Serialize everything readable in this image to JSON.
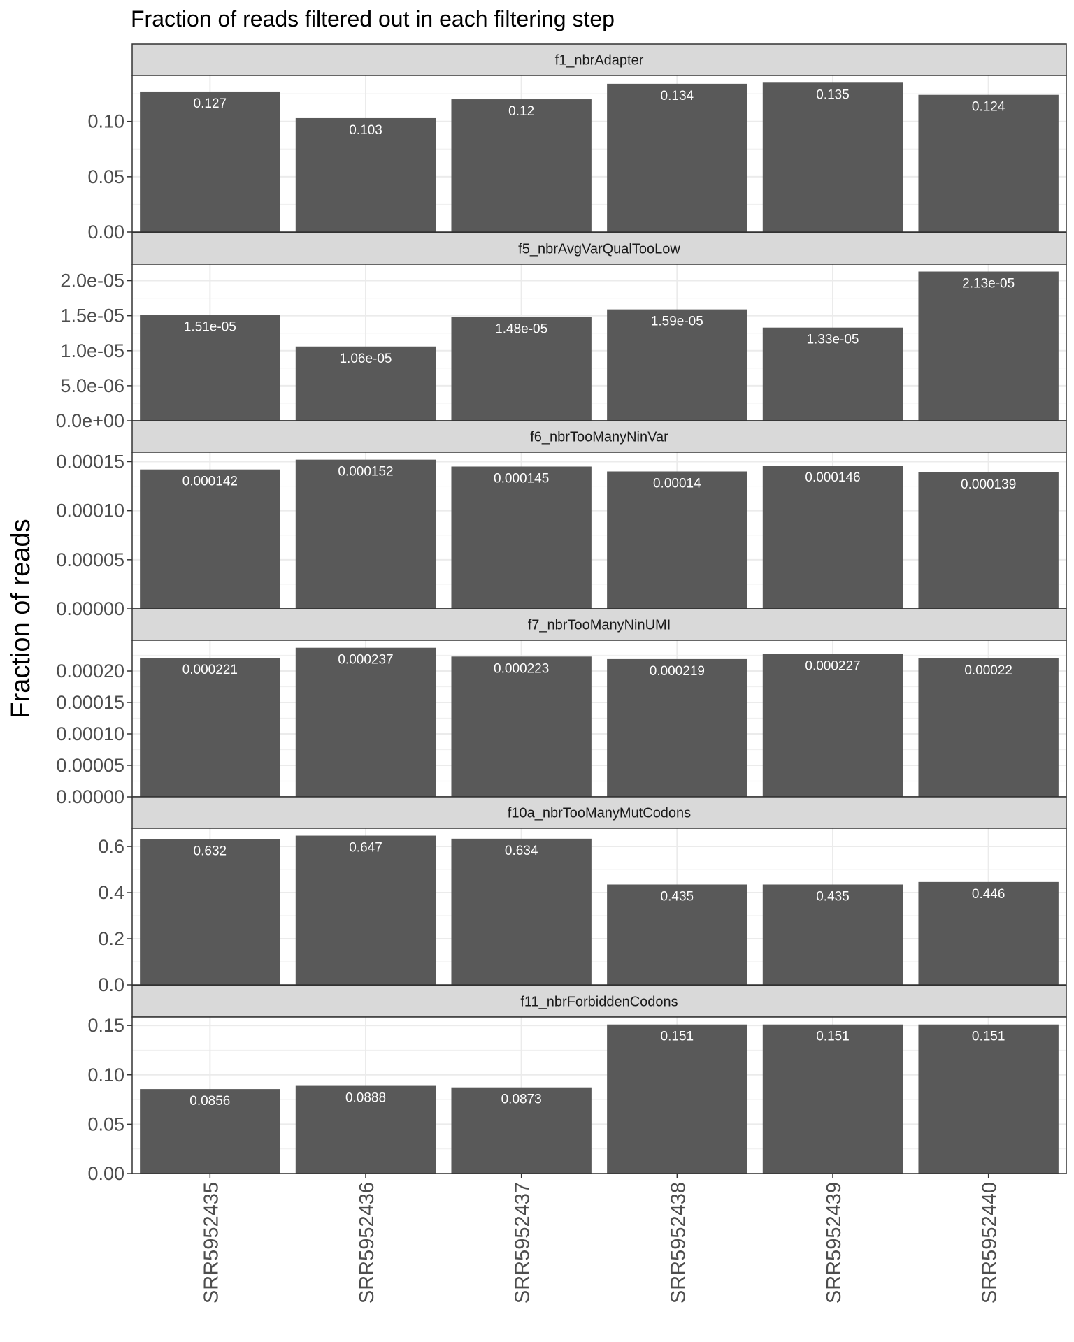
{
  "chart_data": {
    "type": "bar",
    "title": "Fraction of reads filtered out in each filtering step",
    "ylabel": "Fraction of reads",
    "xlabel": "",
    "bar_color": "#595959",
    "strip_fill": "#d9d9d9",
    "grid": true,
    "categories": [
      "SRR5952435",
      "SRR5952436",
      "SRR5952437",
      "SRR5952438",
      "SRR5952439",
      "SRR5952440"
    ],
    "panels": [
      {
        "name": "f1_nbrAdapter",
        "values": [
          0.127,
          0.103,
          0.12,
          0.134,
          0.135,
          0.124
        ],
        "labels": [
          "0.127",
          "0.103",
          "0.12",
          "0.134",
          "0.135",
          "0.124"
        ],
        "ylim": [
          0,
          0.1415
        ],
        "yticks": [
          0,
          0.05,
          0.1
        ],
        "yticklabels": [
          "0.00",
          "0.05",
          "0.10"
        ]
      },
      {
        "name": "f5_nbrAvgVarQualTooLow",
        "values": [
          1.51e-05,
          1.06e-05,
          1.48e-05,
          1.59e-05,
          1.33e-05,
          2.13e-05
        ],
        "labels": [
          "1.51e-05",
          "1.06e-05",
          "1.48e-05",
          "1.59e-05",
          "1.33e-05",
          "2.13e-05"
        ],
        "ylim": [
          0,
          2.235e-05
        ],
        "yticks": [
          0,
          5e-06,
          1e-05,
          1.5e-05,
          2e-05
        ],
        "yticklabels": [
          "0.0e+00",
          "5.0e-06",
          "1.0e-05",
          "1.5e-05",
          "2.0e-05"
        ]
      },
      {
        "name": "f6_nbrTooManyNinVar",
        "values": [
          0.000142,
          0.000152,
          0.000145,
          0.00014,
          0.000146,
          0.000139
        ],
        "labels": [
          "0.000142",
          "0.000152",
          "0.000145",
          "0.00014",
          "0.000146",
          "0.000139"
        ],
        "ylim": [
          0,
          0.0001596
        ],
        "yticks": [
          0,
          5e-05,
          0.0001,
          0.00015
        ],
        "yticklabels": [
          "0.00000",
          "0.00005",
          "0.00010",
          "0.00015"
        ]
      },
      {
        "name": "f7_nbrTooManyNinUMI",
        "values": [
          0.000221,
          0.000237,
          0.000223,
          0.000219,
          0.000227,
          0.00022
        ],
        "labels": [
          "0.000221",
          "0.000237",
          "0.000223",
          "0.000219",
          "0.000227",
          "0.00022"
        ],
        "ylim": [
          0,
          0.0002489
        ],
        "yticks": [
          0,
          5e-05,
          0.0001,
          0.00015,
          0.0002
        ],
        "yticklabels": [
          "0.00000",
          "0.00005",
          "0.00010",
          "0.00015",
          "0.00020"
        ]
      },
      {
        "name": "f10a_nbrTooManyMutCodons",
        "values": [
          0.632,
          0.647,
          0.634,
          0.435,
          0.435,
          0.446
        ],
        "labels": [
          "0.632",
          "0.647",
          "0.634",
          "0.435",
          "0.435",
          "0.446"
        ],
        "ylim": [
          0,
          0.679
        ],
        "yticks": [
          0,
          0.2,
          0.4,
          0.6
        ],
        "yticklabels": [
          "0.0",
          "0.2",
          "0.4",
          "0.6"
        ]
      },
      {
        "name": "f11_nbrForbiddenCodons",
        "values": [
          0.0856,
          0.0888,
          0.0873,
          0.151,
          0.151,
          0.151
        ],
        "labels": [
          "0.0856",
          "0.0888",
          "0.0873",
          "0.151",
          "0.151",
          "0.151"
        ],
        "ylim": [
          0,
          0.1586
        ],
        "yticks": [
          0,
          0.05,
          0.1,
          0.15
        ],
        "yticklabels": [
          "0.00",
          "0.05",
          "0.10",
          "0.15"
        ]
      }
    ]
  }
}
